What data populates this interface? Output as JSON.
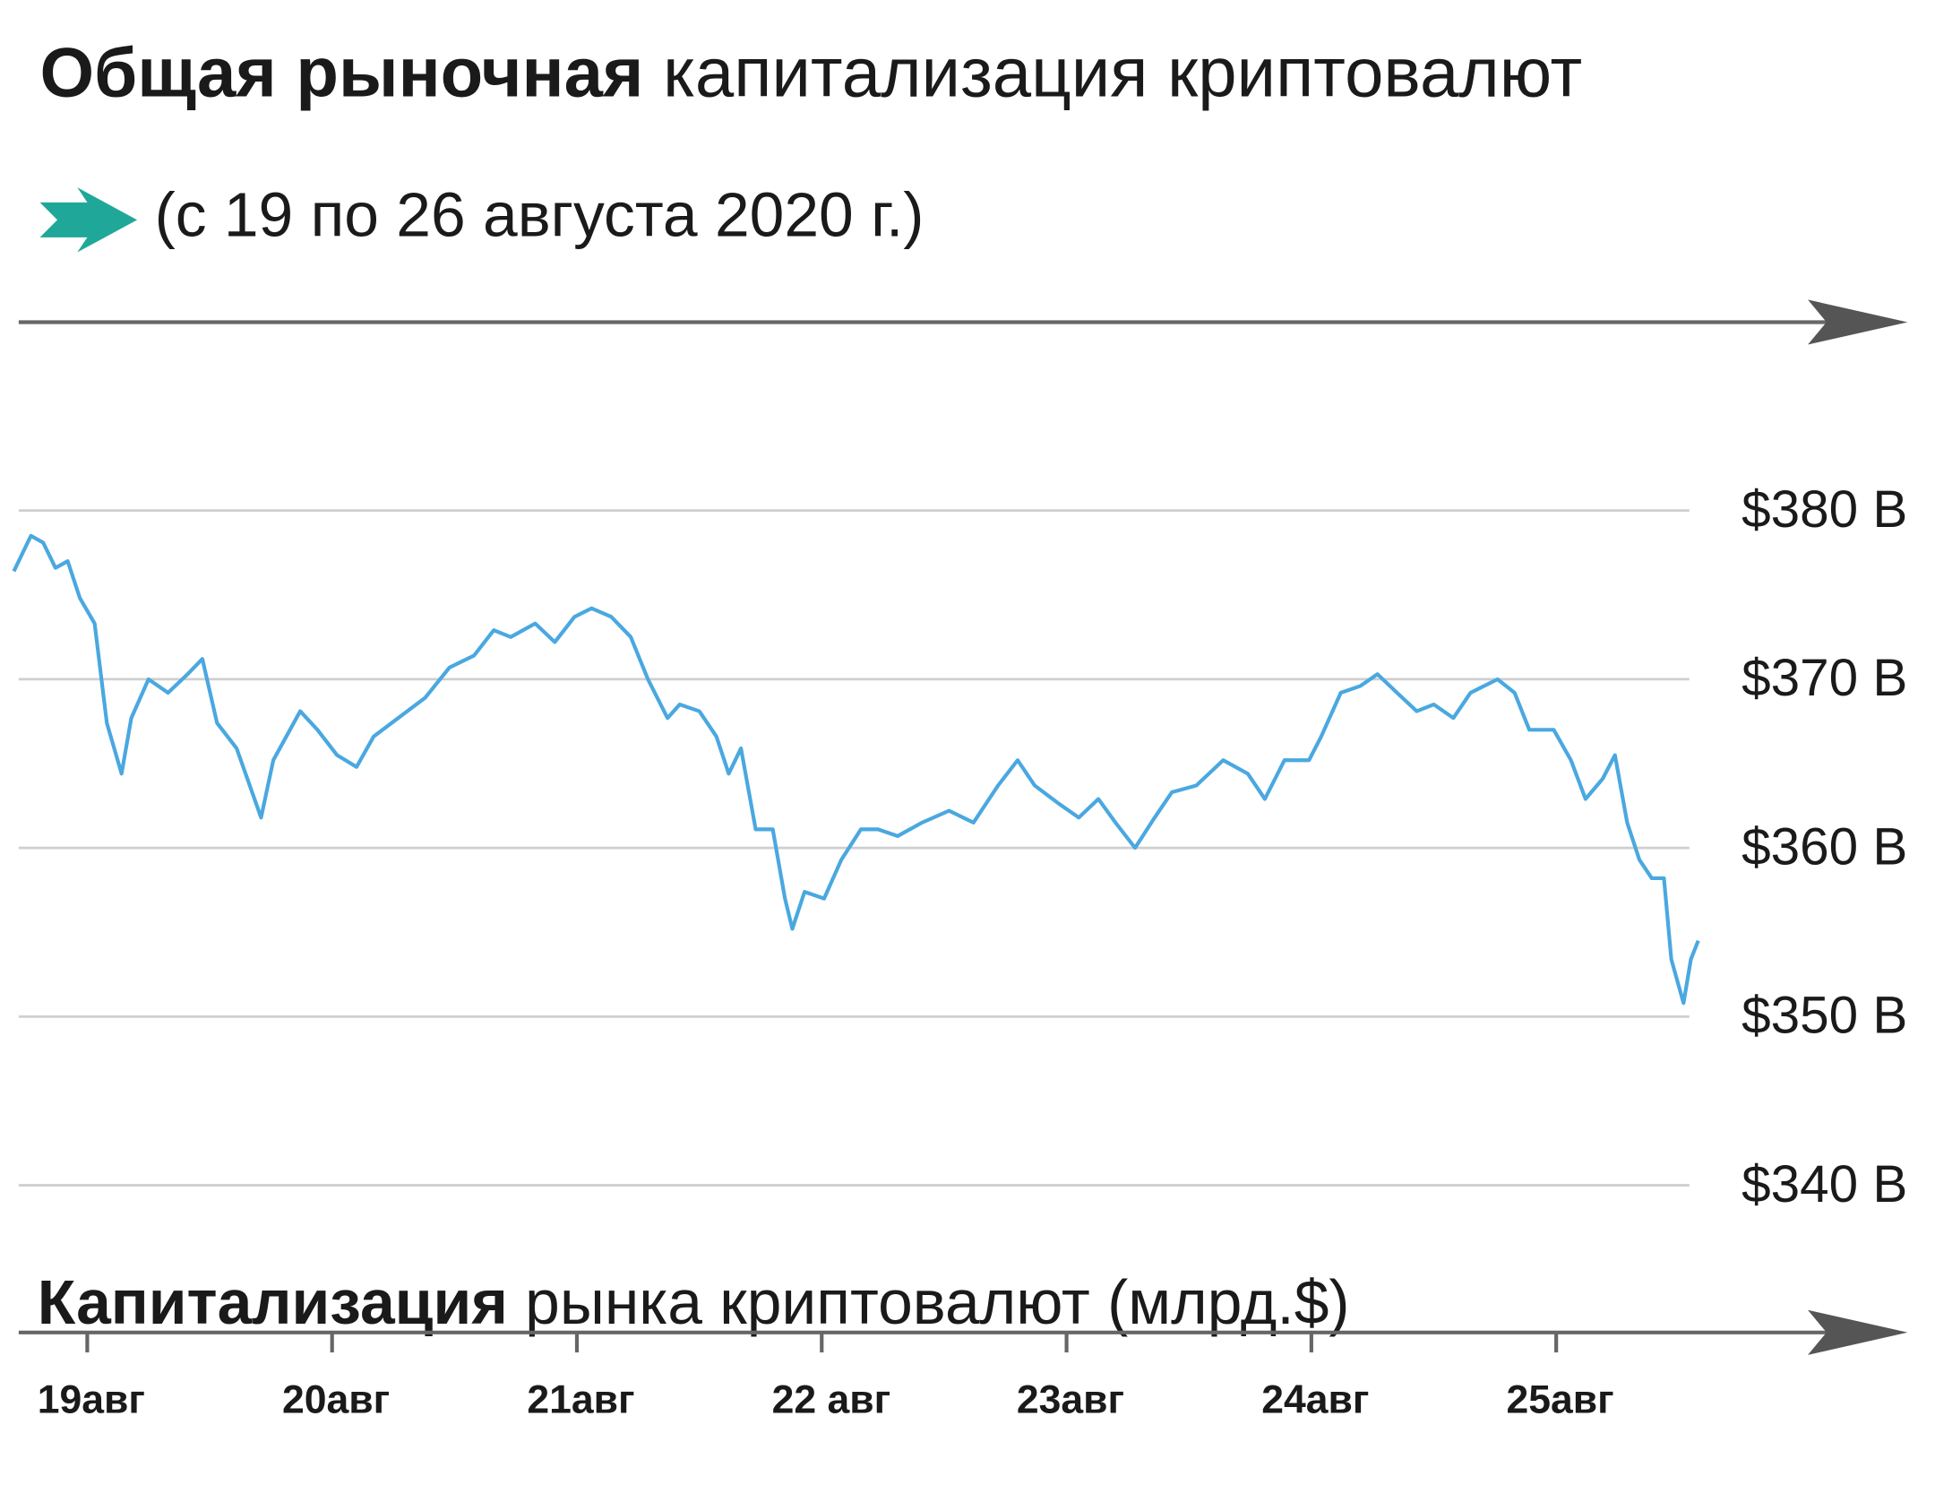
{
  "chart_data": {
    "type": "line",
    "title": [
      "Общая рыночная",
      "капитализация криптовалют"
    ],
    "subtitle": "(с 19 по 26 августа 2020 г.)",
    "y_label": [
      "Капитализация",
      "рынка криптовалют (млрд.$)"
    ],
    "xlim": [
      18.72,
      25.6
    ],
    "xticks": [
      {
        "value": 19,
        "label": "19авг"
      },
      {
        "value": 20,
        "label": "20авг"
      },
      {
        "value": 21,
        "label": "21авг"
      },
      {
        "value": 22,
        "label": "22 авг"
      },
      {
        "value": 23,
        "label": "23авг"
      },
      {
        "value": 24,
        "label": "24авг"
      },
      {
        "value": 25,
        "label": "25авг"
      }
    ],
    "ylim": [
      340,
      380
    ],
    "yticks": [
      {
        "value": 380,
        "label": "$380 B"
      },
      {
        "value": 370,
        "label": "$370 B"
      },
      {
        "value": 360,
        "label": "$360 B"
      },
      {
        "value": 350,
        "label": "$350 B"
      },
      {
        "value": 340,
        "label": "$340 B"
      }
    ],
    "grid": true,
    "series": [
      {
        "color": "#4aa8e0",
        "x": [
          18.7,
          18.77,
          18.82,
          18.87,
          18.92,
          18.97,
          19.03,
          19.08,
          19.14,
          19.18,
          19.25,
          19.33,
          19.41,
          19.47,
          19.53,
          19.61,
          19.71,
          19.76,
          19.87,
          19.94,
          20.02,
          20.1,
          20.17,
          20.27,
          20.38,
          20.48,
          20.58,
          20.66,
          20.73,
          20.83,
          20.91,
          20.99,
          21.06,
          21.14,
          21.22,
          21.29,
          21.37,
          21.42,
          21.5,
          21.57,
          21.62,
          21.67,
          21.73,
          21.8,
          21.85,
          21.88,
          21.93,
          22.01,
          22.08,
          22.16,
          22.23,
          22.31,
          22.41,
          22.52,
          22.62,
          22.72,
          22.8,
          22.87,
          22.97,
          23.05,
          23.13,
          23.2,
          23.28,
          23.36,
          23.43,
          23.53,
          23.64,
          23.74,
          23.81,
          23.89,
          23.99,
          24.04,
          24.12,
          24.2,
          24.27,
          24.35,
          24.43,
          24.5,
          24.58,
          24.65,
          24.76,
          24.83,
          24.89,
          24.99,
          25.06,
          25.12,
          25.19,
          25.24,
          25.29,
          25.34,
          25.39,
          25.44,
          25.47,
          25.52,
          25.55,
          25.58
        ],
        "values": [
          376.4,
          378.5,
          378.1,
          376.6,
          377,
          374.8,
          373.3,
          367.4,
          364.4,
          367.7,
          370,
          369.2,
          370.3,
          371.2,
          367.4,
          365.9,
          361.8,
          365.2,
          368.1,
          367,
          365.5,
          364.8,
          366.6,
          367.7,
          368.9,
          370.7,
          371.4,
          372.9,
          372.5,
          373.3,
          372.2,
          373.7,
          374.2,
          373.7,
          372.5,
          370,
          367.7,
          368.5,
          368.1,
          366.6,
          364.4,
          365.9,
          361.1,
          361.1,
          357,
          355.2,
          357.4,
          357,
          359.3,
          361.1,
          361.1,
          360.7,
          361.5,
          362.2,
          361.5,
          363.7,
          365.2,
          363.7,
          362.6,
          361.8,
          362.9,
          361.5,
          360,
          361.8,
          363.3,
          363.7,
          365.2,
          364.4,
          362.9,
          365.2,
          365.2,
          366.6,
          369.2,
          369.6,
          370.3,
          369.2,
          368.1,
          368.5,
          367.7,
          369.2,
          370,
          369.2,
          367,
          367,
          365.2,
          362.9,
          364.1,
          365.5,
          361.5,
          359.3,
          358.2,
          358.2,
          353.4,
          350.8,
          353.4,
          354.5
        ]
      }
    ]
  }
}
